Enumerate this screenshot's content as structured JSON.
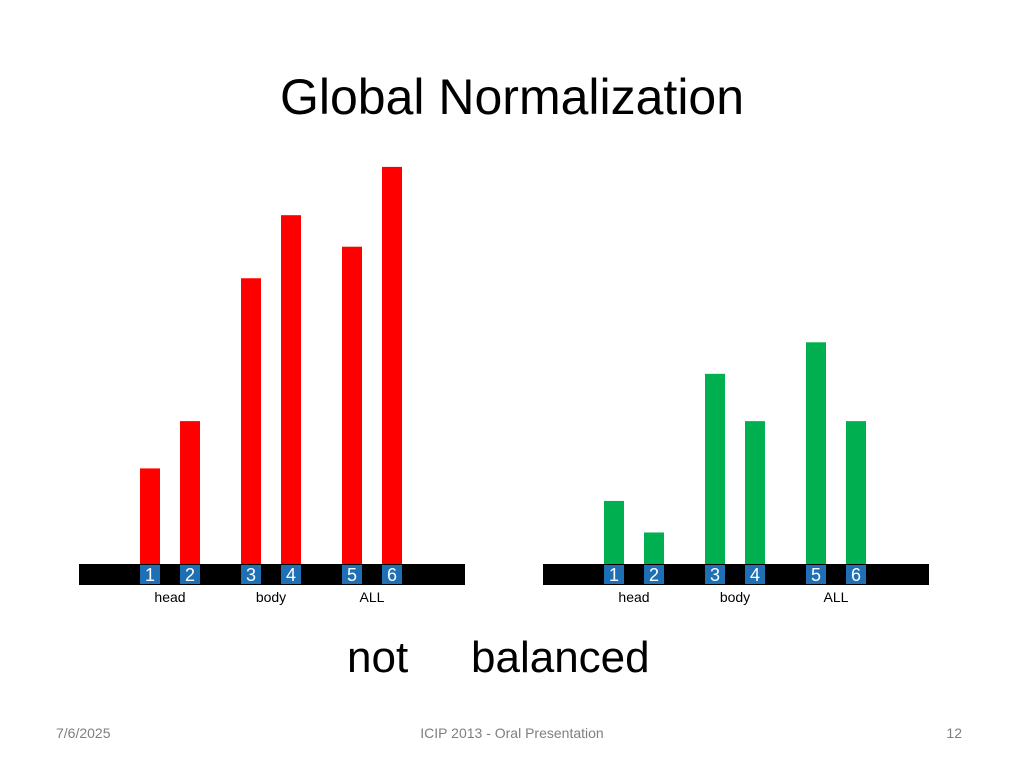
{
  "slide": {
    "title": "Global Normalization",
    "caption_words": [
      "not",
      "balanced"
    ],
    "footer": {
      "date": "7/6/2025",
      "center": "ICIP 2013 - Oral Presentation",
      "page_number": "12"
    }
  },
  "colors": {
    "left_bars": "#ff0000",
    "right_bars": "#00b050",
    "index_box": "#1f6fb4",
    "axis_bar": "#000000"
  },
  "chart_data": [
    {
      "type": "bar",
      "categories": [
        "1",
        "2",
        "3",
        "4",
        "5",
        "6"
      ],
      "groups": [
        {
          "label": "head",
          "categories": [
            "1",
            "2"
          ]
        },
        {
          "label": "body",
          "categories": [
            "3",
            "4"
          ]
        },
        {
          "label": "ALL",
          "categories": [
            "5",
            "6"
          ]
        }
      ],
      "values": [
        97,
        145,
        290,
        354,
        322,
        403
      ],
      "color": "#ff0000",
      "ylim": [
        0,
        410
      ]
    },
    {
      "type": "bar",
      "categories": [
        "1",
        "2",
        "3",
        "4",
        "5",
        "6"
      ],
      "groups": [
        {
          "label": "head",
          "categories": [
            "1",
            "2"
          ]
        },
        {
          "label": "body",
          "categories": [
            "3",
            "4"
          ]
        },
        {
          "label": "ALL",
          "categories": [
            "5",
            "6"
          ]
        }
      ],
      "values": [
        64,
        32,
        193,
        145,
        225,
        145
      ],
      "color": "#00b050",
      "ylim": [
        0,
        410
      ]
    }
  ]
}
